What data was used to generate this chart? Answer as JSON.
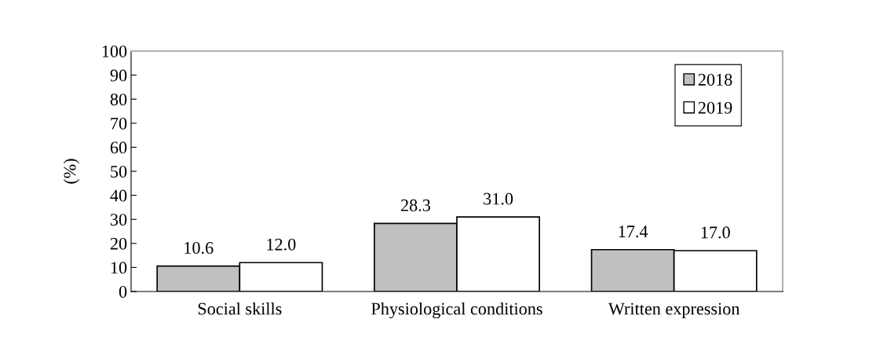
{
  "chart_data": {
    "type": "bar",
    "ylabel": "(%)",
    "categories": [
      "Social skills",
      "Physiological conditions",
      "Written expression"
    ],
    "series": [
      {
        "name": "2018",
        "color": "#c0c0c0",
        "values": [
          10.6,
          28.3,
          17.4
        ],
        "value_labels": [
          "10.6",
          "28.3",
          "17.4"
        ]
      },
      {
        "name": "2019",
        "color": "#ffffff",
        "values": [
          12.0,
          31.0,
          17.0
        ],
        "value_labels": [
          "12.0",
          "31.0",
          "17.0"
        ]
      }
    ],
    "ylim": [
      0,
      100
    ],
    "yticks": [
      0,
      10,
      20,
      30,
      40,
      50,
      60,
      70,
      80,
      90,
      100
    ],
    "grid": false,
    "legend": "top right"
  }
}
